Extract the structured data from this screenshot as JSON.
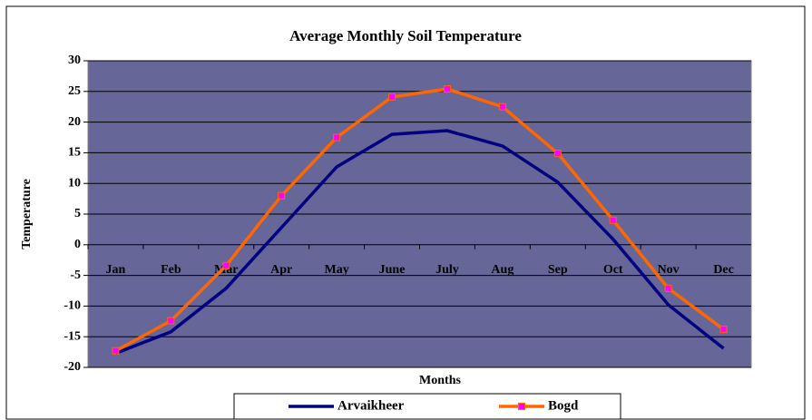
{
  "chart_data": {
    "type": "line",
    "title": "Average Monthly Soil Temperature",
    "x_label": "Months",
    "y_label": "Temperature",
    "categories": [
      "Jan",
      "Feb",
      "Mar",
      "Apr",
      "May",
      "June",
      "July",
      "Aug",
      "Sep",
      "Oct",
      "Nov",
      "Dec"
    ],
    "series": [
      {
        "name": "Arvaikheer",
        "color": "#000080",
        "values": [
          -17.7,
          -14.2,
          -7.1,
          2.8,
          12.7,
          18.0,
          18.6,
          16.1,
          10.2,
          0.9,
          -9.8,
          -16.9
        ]
      },
      {
        "name": "Bogd",
        "color": "#ff6600",
        "marker_color": "#ff00ff",
        "values": [
          -17.3,
          -12.4,
          -3.4,
          8.0,
          17.5,
          24.1,
          25.4,
          22.5,
          14.9,
          4.0,
          -7.1,
          -13.8
        ]
      }
    ],
    "ylim": [
      -20,
      30
    ],
    "yticks": [
      -20,
      -15,
      -10,
      -5,
      0,
      5,
      10,
      15,
      20,
      25,
      30
    ],
    "grid": true,
    "legend": "bottom",
    "plot_color": "#666699"
  }
}
